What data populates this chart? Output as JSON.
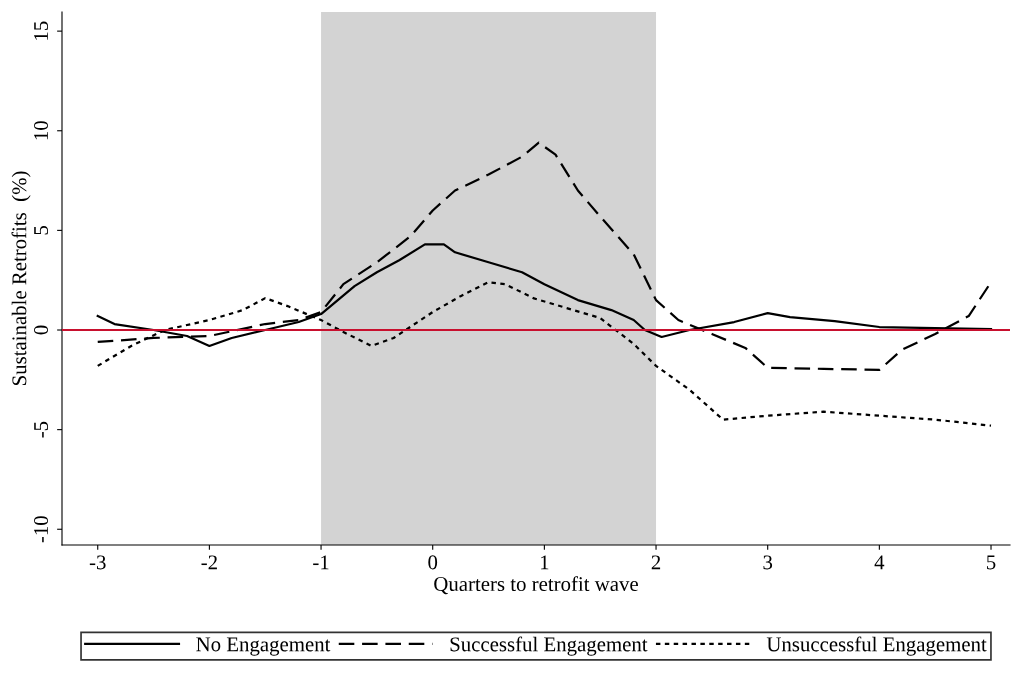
{
  "chart_data": {
    "type": "line",
    "xlabel": "Quarters to retrofit wave",
    "ylabel": "Sustainable Retrofits  (%)",
    "xlim": [
      -3.32,
      5.17
    ],
    "ylim": [
      -10.79,
      15.96
    ],
    "xticks": [
      -3,
      -2,
      -1,
      0,
      1,
      2,
      3,
      4,
      5
    ],
    "yticks": [
      -10,
      -5,
      0,
      5,
      10,
      15
    ],
    "grid": false,
    "legend": "bottom",
    "marker": "none",
    "bands": [
      {
        "axis": "x",
        "from": -1,
        "to": 2,
        "color": "#d3d3d3"
      }
    ],
    "ref_lines": [
      {
        "axis": "y",
        "value": 0,
        "color": "#c8102e",
        "line_style": "solid"
      }
    ],
    "series": [
      {
        "name": "No Engagement",
        "color": "#000000",
        "line_style": "solid",
        "x": [
          -3,
          -2.85,
          -2.5,
          -2.2,
          -2,
          -1.8,
          -1.5,
          -1.2,
          -1,
          -0.85,
          -0.7,
          -0.5,
          -0.3,
          -0.07,
          0.1,
          0.2,
          0.5,
          0.8,
          1,
          1.3,
          1.6,
          1.8,
          1.9,
          2.05,
          2.3,
          2.7,
          3,
          3.2,
          3.6,
          4,
          4.5,
          5
        ],
        "values": [
          0.7,
          0.3,
          0,
          -0.3,
          -0.8,
          -0.4,
          0,
          0.4,
          0.8,
          1.5,
          2.2,
          2.9,
          3.5,
          4.3,
          4.3,
          3.9,
          3.4,
          2.9,
          2.3,
          1.5,
          1.0,
          0.5,
          0,
          -0.35,
          0,
          0.4,
          0.85,
          0.65,
          0.45,
          0.15,
          0.1,
          0.05
        ]
      },
      {
        "name": "Successful Engagement",
        "color": "#000000",
        "line_style": "dashed",
        "x": [
          -3,
          -2.5,
          -2,
          -1.5,
          -1.2,
          -1,
          -0.8,
          -0.5,
          -0.2,
          0,
          0.2,
          0.5,
          0.8,
          0.95,
          1.1,
          1.3,
          1.5,
          1.8,
          2,
          2.2,
          2.5,
          2.8,
          3,
          3.5,
          4,
          4.2,
          4.5,
          4.8,
          5
        ],
        "values": [
          -0.6,
          -0.4,
          -0.3,
          0.3,
          0.5,
          0.9,
          2.3,
          3.4,
          4.7,
          6.0,
          7.0,
          7.8,
          8.7,
          9.4,
          8.8,
          7.0,
          5.7,
          3.8,
          1.5,
          0.5,
          -0.2,
          -0.9,
          -1.9,
          -1.95,
          -2.0,
          -1.0,
          -0.2,
          0.7,
          2.4
        ]
      },
      {
        "name": "Unsuccessful Engagement",
        "color": "#000000",
        "line_style": "dotted",
        "x": [
          -3,
          -2.7,
          -2.4,
          -2,
          -1.7,
          -1.5,
          -1.3,
          -1,
          -0.8,
          -0.55,
          -0.35,
          0,
          0.25,
          0.5,
          0.65,
          0.9,
          1.2,
          1.5,
          1.8,
          2,
          2.3,
          2.6,
          3,
          3.5,
          4,
          4.5,
          5
        ],
        "values": [
          -1.8,
          -0.8,
          0,
          0.5,
          1.0,
          1.6,
          1.2,
          0.5,
          -0.1,
          -0.8,
          -0.4,
          0.9,
          1.7,
          2.4,
          2.3,
          1.6,
          1.1,
          0.6,
          -0.7,
          -1.8,
          -3.0,
          -4.5,
          -4.3,
          -4.1,
          -4.3,
          -4.5,
          -4.8
        ]
      }
    ]
  }
}
